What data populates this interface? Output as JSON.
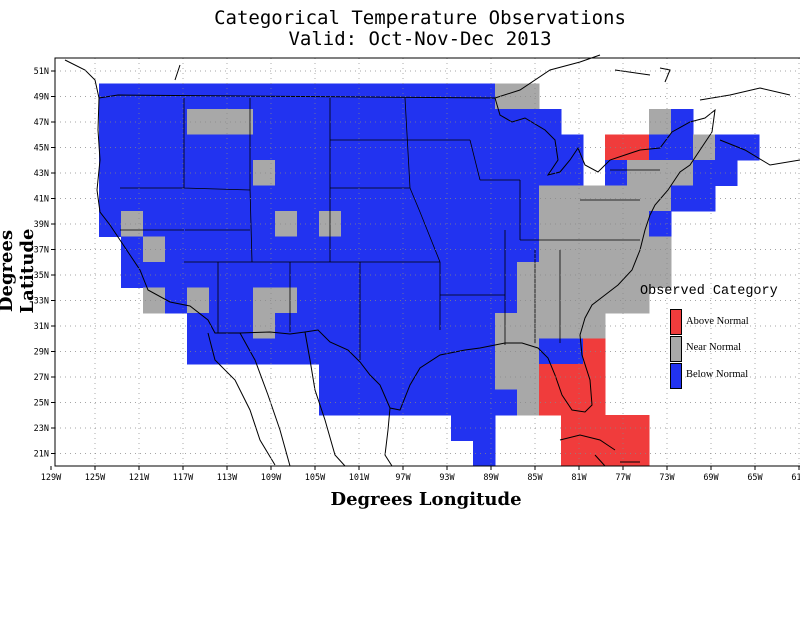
{
  "title_line1": "Categorical Temperature Observations",
  "title_line2": "Valid: Oct-Nov-Dec 2013",
  "x_axis_title": "Degrees Longitude",
  "y_axis_title": "Degrees Latitude",
  "lon_ticks": [
    "129W",
    "125W",
    "121W",
    "117W",
    "113W",
    "109W",
    "105W",
    "101W",
    "97W",
    "93W",
    "89W",
    "85W",
    "81W",
    "77W",
    "73W",
    "69W",
    "65W",
    "61W"
  ],
  "lat_ticks": [
    "51N",
    "49N",
    "47N",
    "45N",
    "43N",
    "41N",
    "39N",
    "37N",
    "35N",
    "33N",
    "31N",
    "29N",
    "27N",
    "25N",
    "23N",
    "21N"
  ],
  "legend": {
    "title": "Observed Category",
    "items": [
      {
        "label": "Above Normal",
        "color": "#f03c3c"
      },
      {
        "label": "Near Normal",
        "color": "#a8a8a8"
      },
      {
        "label": "Below Normal",
        "color": "#2233f0"
      }
    ]
  },
  "grid_data": {
    "lon_start_w": 125,
    "lat_top_n": 49,
    "cell_deg": 2,
    "codes": {
      "B": "Below Normal",
      "N": "Near Normal",
      "A": "Above Normal"
    },
    "rows": [
      "BBBBBBBBBBBBBBBBBBNN..........",
      "BBBBNNNBBBBBBBBBBBBBB....NB...",
      "BBBBBBBBBBBBBBBBBBBBBB.AABBNBB",
      "BBBBBBBNBBBBBBBBBBBBBB.BNNNBB.",
      "BBBBBBBBBBBBBBBBBBBBNNNNNNBB..",
      "BNBBBBBBNBNBBBBBBBBBNNNNNB....",
      ".BNBBBBBBBBBBBBBBBBBNNNNNN....",
      ".BBBBBBBBBBBBBBBBBBNNNNNNN....",
      "..NBNBBNNBBBBBBBBBBNNNNNN.....",
      "....BBBNBBBBBBBBBBNNNNN.......",
      "....BBBBBBBBBBBBBBNNBBA.......",
      "..........BBBBBBBBNNAAA.......",
      "..........BBBBBBBBBNAAA.......",
      "................BB...AAAA.....",
      ".................B...AAAA....."
    ]
  }
}
